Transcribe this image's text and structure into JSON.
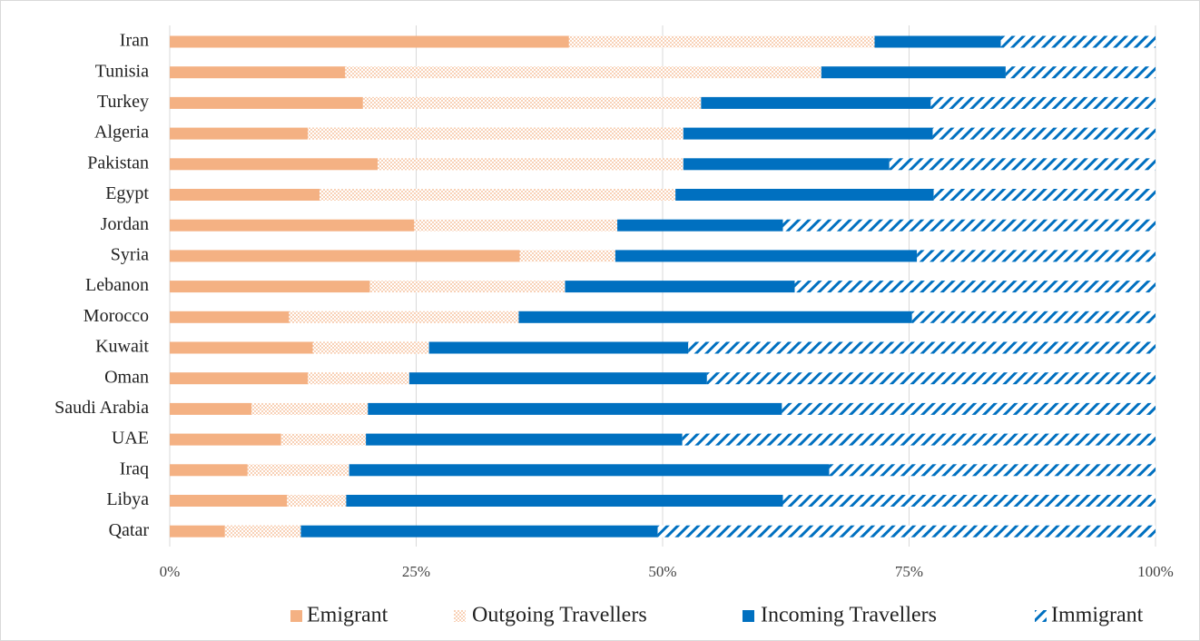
{
  "chart_data": {
    "type": "stacked-barh",
    "categories": [
      "Iran",
      "Tunisia",
      "Turkey",
      "Algeria",
      "Pakistan",
      "Egypt",
      "Jordan",
      "Syria",
      "Lebanon",
      "Morocco",
      "Kuwait",
      "Oman",
      "Saudi Arabia",
      "UAE",
      "Iraq",
      "Libya",
      "Qatar"
    ],
    "series": [
      {
        "name": "Emigrant",
        "color": "#f4b183",
        "pattern": "solid",
        "values": [
          40.5,
          17.8,
          19.6,
          14.0,
          21.1,
          15.2,
          24.8,
          35.5,
          20.3,
          12.1,
          14.5,
          14.0,
          8.3,
          11.3,
          7.9,
          11.9,
          5.6
        ]
      },
      {
        "name": "Outgoing Travellers",
        "color": "#f4b183",
        "pattern": "dots",
        "values": [
          31.0,
          48.3,
          34.3,
          38.1,
          31.0,
          36.1,
          20.6,
          9.7,
          19.8,
          23.3,
          11.8,
          10.3,
          11.8,
          8.6,
          10.3,
          6.0,
          7.7
        ]
      },
      {
        "name": "Incoming Travellers",
        "color": "#0070c0",
        "pattern": "solid",
        "values": [
          12.8,
          18.7,
          23.3,
          25.3,
          20.9,
          26.2,
          16.8,
          30.6,
          23.3,
          39.9,
          26.3,
          30.2,
          42.0,
          32.1,
          48.7,
          44.3,
          36.2
        ]
      },
      {
        "name": "Immigrant",
        "color": "#0070c0",
        "pattern": "hatch",
        "values": [
          15.7,
          15.2,
          22.8,
          22.6,
          27.0,
          22.5,
          37.8,
          24.2,
          36.6,
          24.7,
          47.4,
          45.5,
          37.9,
          48.0,
          33.1,
          37.8,
          50.5
        ]
      }
    ],
    "xlim": [
      0,
      100
    ],
    "xticks": [
      {
        "value": 0,
        "label": "0%"
      },
      {
        "value": 25,
        "label": "25%"
      },
      {
        "value": 50,
        "label": "50%"
      },
      {
        "value": 75,
        "label": "75%"
      },
      {
        "value": 100,
        "label": "100%"
      }
    ],
    "grid": true,
    "legend": "bottom"
  }
}
